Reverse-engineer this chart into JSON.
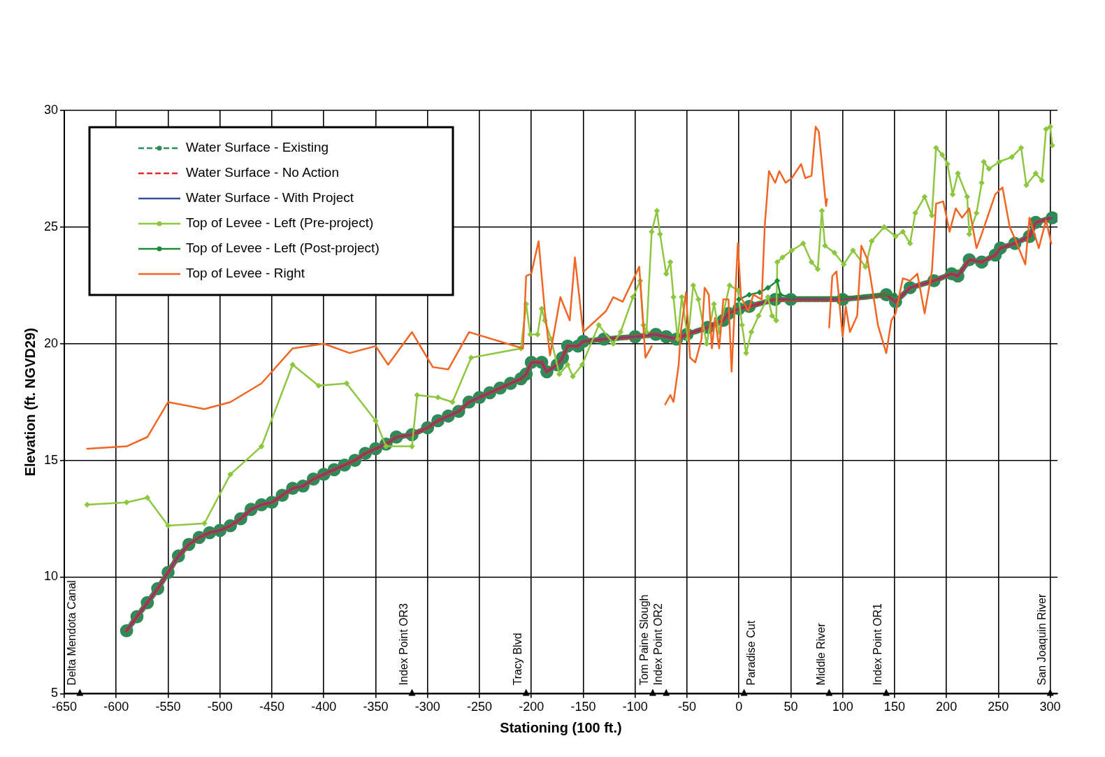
{
  "chart_data": {
    "type": "line",
    "xlabel": "Stationing (100 ft.)",
    "ylabel": "Elevation (ft. NGVD29)",
    "xlim": [
      -650,
      307
    ],
    "xticks": [
      -650,
      -600,
      -550,
      -500,
      -450,
      -400,
      -350,
      -300,
      -250,
      -200,
      -150,
      -100,
      -50,
      0,
      50,
      100,
      150,
      200,
      250,
      300
    ],
    "ylim": [
      5,
      30
    ],
    "yticks": [
      5,
      10,
      15,
      20,
      25,
      30
    ],
    "grid": true,
    "legend": "top left",
    "series": [
      {
        "name": "Water Surface - Existing",
        "color": "#2e8b57",
        "line_style": "dashed",
        "marker": "circle",
        "x": [
          -590,
          -580,
          -570,
          -560,
          -550,
          -540,
          -530,
          -520,
          -510,
          -500,
          -490,
          -480,
          -470,
          -460,
          -450,
          -440,
          -430,
          -420,
          -410,
          -400,
          -390,
          -380,
          -370,
          -360,
          -350,
          -340,
          -330,
          -315,
          -300,
          -290,
          -280,
          -270,
          -260,
          -250,
          -240,
          -230,
          -220,
          -210,
          -205,
          -200,
          -190,
          -185,
          -175,
          -170,
          -165,
          -155,
          -150,
          -130,
          -100,
          -80,
          -70,
          -60,
          -50,
          -30,
          -15,
          -10,
          0,
          10,
          35,
          50,
          100,
          142,
          151,
          165,
          188,
          205,
          211,
          222,
          234,
          247,
          252,
          266,
          280,
          286,
          302
        ],
        "values": [
          7.7,
          8.3,
          8.9,
          9.5,
          10.2,
          10.9,
          11.4,
          11.7,
          11.9,
          12.0,
          12.2,
          12.5,
          12.9,
          13.1,
          13.2,
          13.5,
          13.8,
          13.9,
          14.2,
          14.4,
          14.6,
          14.8,
          15.0,
          15.3,
          15.5,
          15.7,
          16.0,
          16.1,
          16.4,
          16.7,
          16.9,
          17.1,
          17.5,
          17.7,
          17.9,
          18.1,
          18.3,
          18.5,
          18.7,
          19.2,
          19.2,
          18.8,
          19.1,
          19.4,
          19.9,
          19.9,
          20.1,
          20.2,
          20.3,
          20.4,
          20.3,
          20.2,
          20.4,
          20.7,
          21.0,
          21.3,
          21.5,
          21.6,
          21.9,
          21.9,
          21.9,
          22.1,
          21.8,
          22.4,
          22.7,
          23.0,
          22.9,
          23.6,
          23.5,
          23.8,
          24.1,
          24.3,
          24.6,
          25.2,
          25.4
        ]
      },
      {
        "name": "Water Surface - No Action",
        "color": "#e8262b",
        "line_style": "dashed",
        "marker": "none",
        "x": [
          -590,
          -580,
          -570,
          -560,
          -550,
          -540,
          -530,
          -520,
          -510,
          -500,
          -490,
          -480,
          -470,
          -460,
          -450,
          -440,
          -430,
          -420,
          -410,
          -400,
          -390,
          -380,
          -370,
          -360,
          -350,
          -340,
          -330,
          -315,
          -300,
          -290,
          -280,
          -270,
          -260,
          -250,
          -240,
          -230,
          -220,
          -210,
          -205,
          -200,
          -190,
          -185,
          -175,
          -170,
          -165,
          -155,
          -150,
          -130,
          -100,
          -80,
          -70,
          -60,
          -50,
          -30,
          -15,
          -10,
          0,
          10,
          35,
          50,
          100,
          142,
          151,
          165,
          188,
          205,
          211,
          222,
          234,
          247,
          252,
          266,
          280,
          286,
          302
        ],
        "values": [
          7.7,
          8.3,
          8.9,
          9.5,
          10.2,
          10.9,
          11.4,
          11.7,
          11.9,
          12.0,
          12.2,
          12.5,
          12.9,
          13.1,
          13.2,
          13.5,
          13.8,
          13.9,
          14.2,
          14.4,
          14.6,
          14.8,
          15.0,
          15.3,
          15.5,
          15.7,
          16.0,
          16.1,
          16.4,
          16.7,
          16.9,
          17.1,
          17.5,
          17.7,
          17.9,
          18.1,
          18.3,
          18.5,
          18.7,
          19.2,
          19.2,
          18.8,
          19.1,
          19.4,
          19.9,
          19.9,
          20.1,
          20.2,
          20.3,
          20.4,
          20.3,
          20.2,
          20.4,
          20.7,
          21.0,
          21.3,
          21.5,
          21.6,
          21.9,
          21.9,
          21.9,
          22.1,
          21.8,
          22.4,
          22.7,
          23.0,
          22.9,
          23.6,
          23.5,
          23.8,
          24.1,
          24.3,
          24.6,
          25.2,
          25.4
        ]
      },
      {
        "name": "Water Surface - With Project",
        "color": "#3b4fa0",
        "line_style": "solid",
        "marker": "none",
        "x": [
          -590,
          -580,
          -570,
          -560,
          -550,
          -540,
          -530,
          -520,
          -510,
          -500,
          -490,
          -480,
          -470,
          -460,
          -450,
          -440,
          -430,
          -420,
          -410,
          -400,
          -390,
          -380,
          -370,
          -360,
          -350,
          -340,
          -330,
          -315,
          -300,
          -290,
          -280,
          -270,
          -260,
          -250,
          -240,
          -230,
          -220,
          -210,
          -205,
          -200,
          -190,
          -185,
          -175,
          -170,
          -165,
          -155,
          -150,
          -130,
          -100,
          -80,
          -70,
          -60,
          -50,
          -30,
          -15,
          -10,
          0,
          10,
          35,
          50,
          100,
          142,
          151,
          165,
          188,
          205,
          211,
          222,
          234,
          247,
          252,
          266,
          280,
          286,
          302
        ],
        "values": [
          7.7,
          8.3,
          8.9,
          9.5,
          10.2,
          10.9,
          11.4,
          11.7,
          11.9,
          12.0,
          12.2,
          12.5,
          12.9,
          13.1,
          13.2,
          13.5,
          13.8,
          13.9,
          14.2,
          14.4,
          14.6,
          14.8,
          15.0,
          15.3,
          15.5,
          15.7,
          16.0,
          16.1,
          16.4,
          16.7,
          16.9,
          17.1,
          17.5,
          17.7,
          17.9,
          18.1,
          18.3,
          18.5,
          18.7,
          19.2,
          19.2,
          18.8,
          19.1,
          19.4,
          19.9,
          19.9,
          20.1,
          20.2,
          20.3,
          20.4,
          20.3,
          20.2,
          20.4,
          20.7,
          21.0,
          21.3,
          21.5,
          21.6,
          21.9,
          21.9,
          21.9,
          22.1,
          21.8,
          22.4,
          22.7,
          23.0,
          22.9,
          23.6,
          23.5,
          23.8,
          24.1,
          24.3,
          24.6,
          25.2,
          25.4
        ]
      },
      {
        "name": "Top of Levee - Left (Pre-project)",
        "color": "#8dc63f",
        "line_style": "solid",
        "marker": "diamond",
        "x": [
          -628,
          -590,
          -570,
          -550,
          -515,
          -490,
          -460,
          -430,
          -405,
          -378,
          -350,
          -340,
          -315,
          -310,
          -290,
          -276,
          -258,
          -210,
          -205,
          -201,
          -194,
          -190,
          -187,
          -181,
          -173,
          -165,
          -160,
          -151,
          -135,
          -121,
          -114,
          -102,
          -95,
          -92,
          -89,
          -84,
          -79,
          -76,
          -70,
          -66,
          -63,
          -59,
          -55,
          -49,
          -44,
          -39,
          -31,
          -24,
          -19,
          -9,
          -1,
          3,
          7,
          12,
          19,
          28,
          32,
          36,
          37,
          42,
          51,
          62,
          70,
          76,
          80,
          83,
          92,
          101,
          110,
          122,
          128,
          140,
          151,
          158,
          165,
          170,
          179,
          186,
          190,
          196,
          201,
          206,
          211,
          220,
          222,
          229,
          234,
          236,
          241,
          251,
          263,
          272,
          277,
          286,
          292,
          296,
          300,
          302
        ],
        "values": [
          13.1,
          13.2,
          13.4,
          12.2,
          12.3,
          14.4,
          15.6,
          19.1,
          18.2,
          18.3,
          16.7,
          15.6,
          15.6,
          17.8,
          17.7,
          17.5,
          19.4,
          19.8,
          21.7,
          20.4,
          20.4,
          21.5,
          21.0,
          20.2,
          18.7,
          19.1,
          18.6,
          19.1,
          20.8,
          20.0,
          20.5,
          22.0,
          22.7,
          20.8,
          20.5,
          24.8,
          25.7,
          24.7,
          23.0,
          23.5,
          22.0,
          20.2,
          22.0,
          20.2,
          22.5,
          21.9,
          20.0,
          21.7,
          20.5,
          22.5,
          22.3,
          20.8,
          19.6,
          20.5,
          21.2,
          22.0,
          21.2,
          21.0,
          23.5,
          23.7,
          24.0,
          24.3,
          23.5,
          23.2,
          25.7,
          24.2,
          23.9,
          23.4,
          24.0,
          23.3,
          24.4,
          25.0,
          24.6,
          24.8,
          24.3,
          25.6,
          26.3,
          25.5,
          28.4,
          28.1,
          27.7,
          26.4,
          27.3,
          26.3,
          24.7,
          25.6,
          26.9,
          27.8,
          27.5,
          27.8,
          28.0,
          28.4,
          26.8,
          27.3,
          27.0,
          29.2,
          29.3,
          28.5
        ]
      },
      {
        "name": "Top of Levee - Left (Post-project)",
        "color": "#1f8a3c",
        "line_style": "solid",
        "marker": "diamond",
        "x": [
          0,
          10,
          20,
          28,
          37,
          40,
          50,
          100,
          150
        ],
        "values": [
          21.9,
          22.1,
          22.2,
          22.4,
          22.7,
          22.1,
          22.0,
          22.0,
          22.1
        ]
      },
      {
        "name": "Top of Levee - Right",
        "color": "#f26522",
        "line_style": "solid",
        "marker": "none",
        "x": [
          -628,
          -590,
          -570,
          -550,
          -515,
          -490,
          -460,
          -430,
          -400,
          -375,
          -350,
          -338,
          -315,
          -295,
          -280,
          -260,
          -208,
          -205,
          -200,
          -193,
          -187,
          -182,
          -172,
          -163,
          -158,
          -150,
          -128,
          -121,
          -112,
          -96,
          -90,
          -84,
          -78,
          -71,
          -66,
          -63,
          -58,
          -56,
          -51,
          -47,
          -42,
          -36,
          -33,
          -29,
          -26,
          -23,
          -19,
          -15,
          -10,
          -7,
          -1,
          2,
          9,
          14,
          22,
          25,
          29,
          35,
          39,
          45,
          51,
          60,
          64,
          70,
          74,
          77,
          84,
          85,
          86,
          87,
          90,
          94,
          100,
          103,
          107,
          114,
          118,
          124,
          127,
          134,
          142,
          147,
          151,
          158,
          165,
          172,
          179,
          186,
          190,
          197,
          203,
          209,
          215,
          222,
          229,
          234,
          247,
          254,
          261,
          266,
          276,
          280,
          289,
          296,
          301
        ],
        "values": [
          15.5,
          15.6,
          16.0,
          17.5,
          17.2,
          17.5,
          18.3,
          19.8,
          20.0,
          19.6,
          19.9,
          19.1,
          20.5,
          19.0,
          18.9,
          20.5,
          19.8,
          22.9,
          23.0,
          24.4,
          21.4,
          19.5,
          22.0,
          21.0,
          23.7,
          20.5,
          21.4,
          22.0,
          21.8,
          23.3,
          19.4,
          19.9,
          null,
          17.4,
          17.8,
          17.5,
          19.1,
          20.5,
          22.2,
          19.4,
          19.2,
          20.2,
          22.4,
          22.1,
          19.8,
          21.1,
          19.8,
          21.9,
          21.9,
          18.8,
          24.3,
          22.0,
          21.4,
          22.1,
          21.9,
          25.1,
          27.4,
          26.9,
          27.4,
          26.9,
          27.1,
          27.7,
          27.1,
          27.2,
          29.3,
          29.1,
          25.9,
          26.2,
          null,
          20.7,
          22.9,
          23.1,
          20.3,
          21.6,
          20.5,
          21.2,
          24.2,
          23.6,
          22.8,
          20.8,
          19.6,
          21.0,
          21.3,
          22.8,
          22.7,
          23.0,
          21.3,
          23.1,
          26.0,
          26.1,
          24.8,
          25.8,
          25.4,
          25.8,
          24.1,
          24.7,
          26.4,
          26.7,
          25.0,
          24.5,
          23.4,
          25.4,
          24.1,
          25.3,
          24.3
        ]
      }
    ],
    "annotations": [
      {
        "text": "Delta Mendota Canal",
        "x": -635,
        "y": 5
      },
      {
        "text": "Index Point OR3",
        "x": -315,
        "y": 5
      },
      {
        "text": "Tracy Blvd",
        "x": -205,
        "y": 5
      },
      {
        "text": "Tom Paine Slough",
        "x": -83,
        "y": 5
      },
      {
        "text": "Index Point OR2",
        "x": -70,
        "y": 5
      },
      {
        "text": "Paradise Cut",
        "x": 5,
        "y": 5
      },
      {
        "text": "Middle River",
        "x": 87,
        "y": 5
      },
      {
        "text": "Index Point OR1",
        "x": 142,
        "y": 5
      },
      {
        "text": "San Joaquin River",
        "x": 300,
        "y": 5
      }
    ]
  }
}
